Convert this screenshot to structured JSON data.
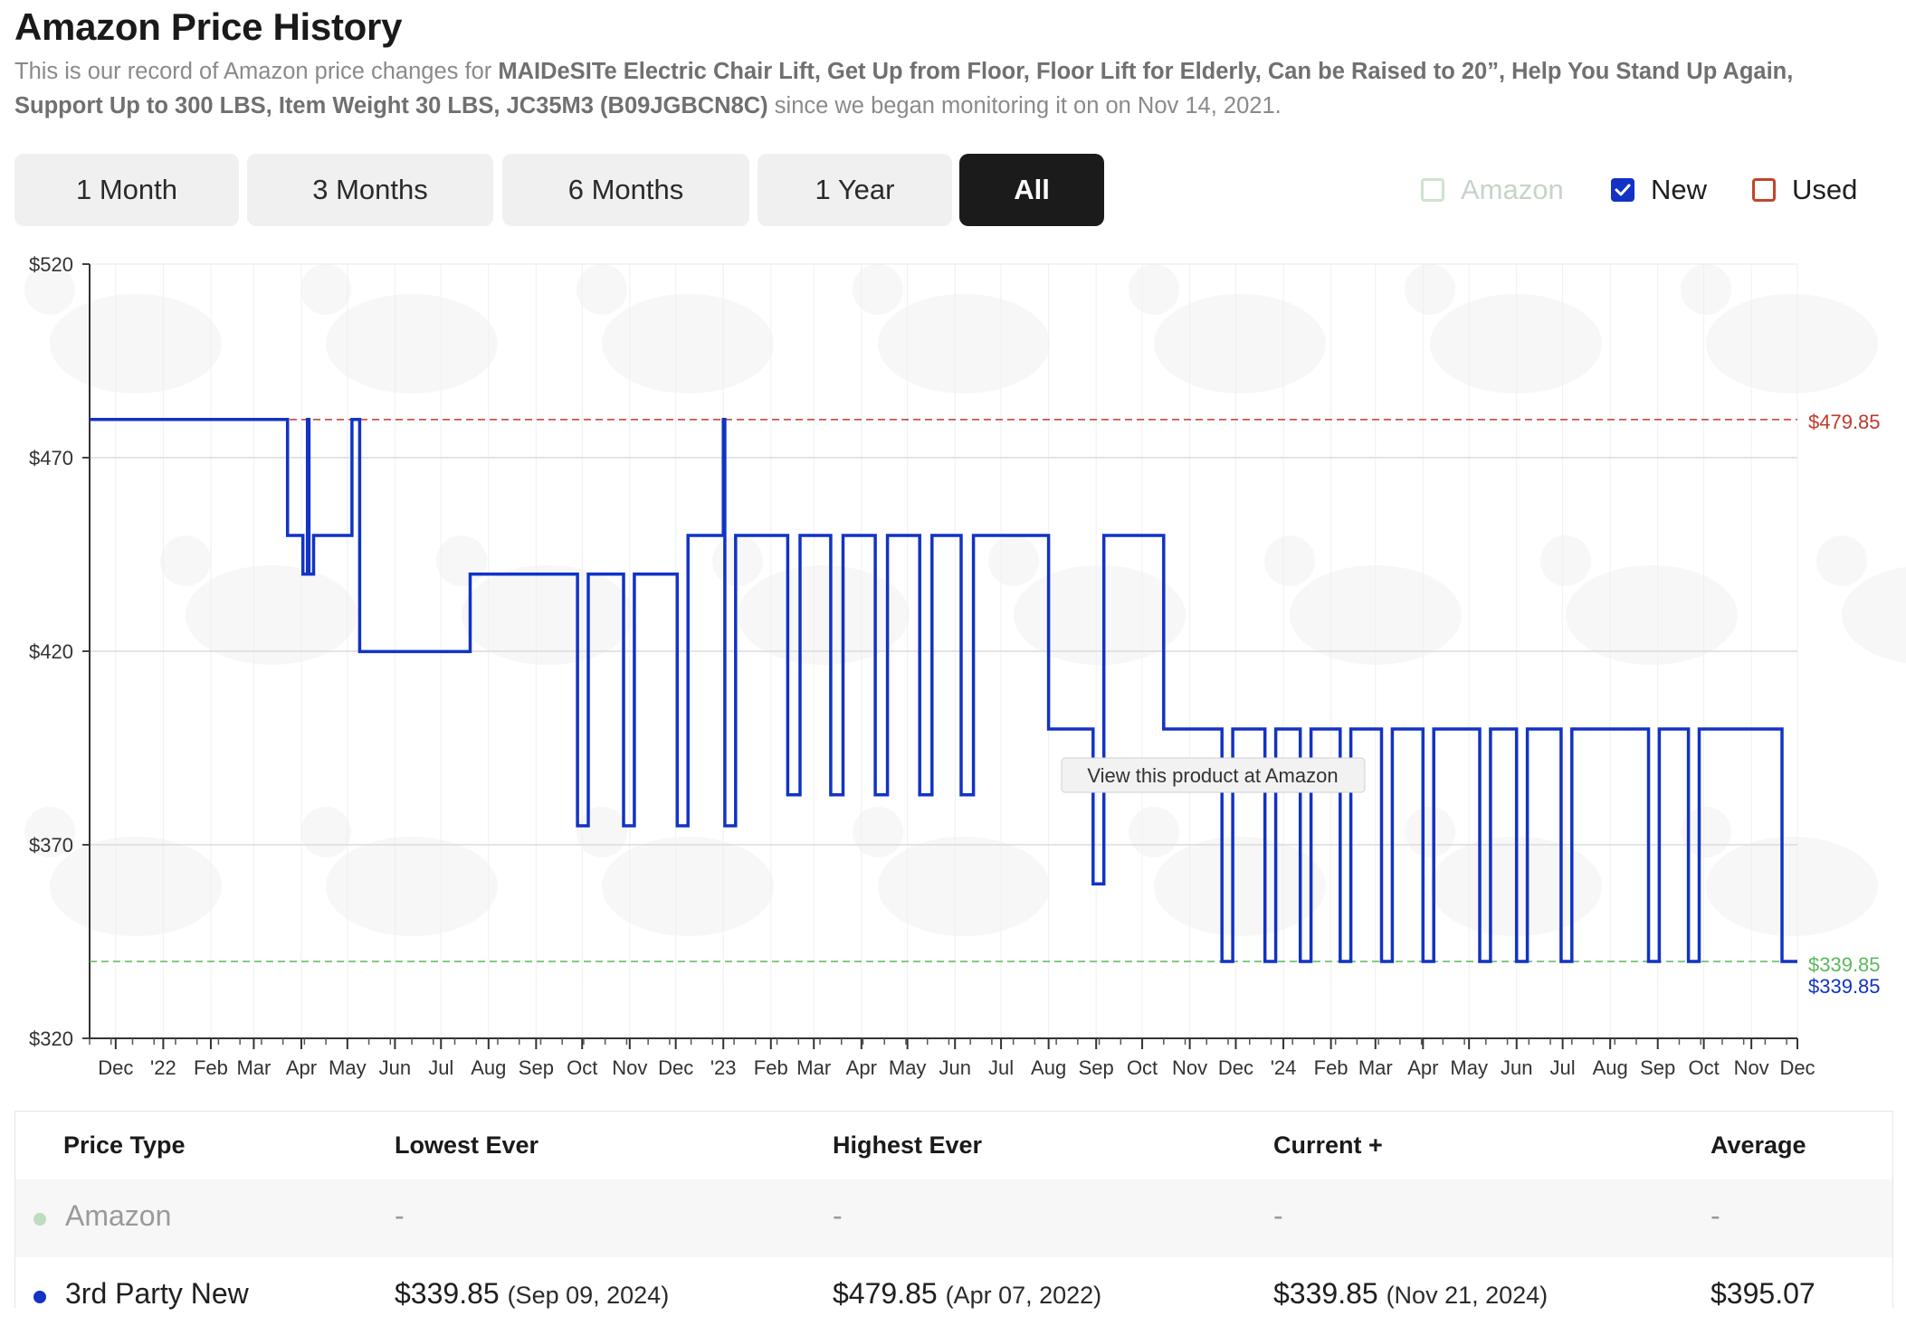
{
  "header": {
    "title": "Amazon Price History",
    "desc_prefix": "This is our record of Amazon price changes for ",
    "product": "MAIDeSITe Electric Chair Lift, Get Up from Floor, Floor Lift for Elderly, Can be Raised to 20”, Help You Stand Up Again, Support Up to 300 LBS, Item Weight 30 LBS, JC35M3 (B09JGBCN8C)",
    "desc_suffix": " since we began monitoring it on on Nov 14, 2021."
  },
  "range_tabs": [
    {
      "label": "1 Month",
      "active": false
    },
    {
      "label": "3 Months",
      "active": false
    },
    {
      "label": "6 Months",
      "active": false
    },
    {
      "label": "1 Year",
      "active": false
    },
    {
      "label": "All",
      "active": true
    }
  ],
  "legend": {
    "amazon": {
      "label": "Amazon",
      "checked": false,
      "color": "#cfe3cf"
    },
    "new": {
      "label": "New",
      "checked": true,
      "color": "#1233c4"
    },
    "used": {
      "label": "Used",
      "checked": false,
      "color": "#c2452c"
    }
  },
  "chart_data": {
    "type": "line",
    "step": true,
    "ylim": [
      320,
      520
    ],
    "yticks": [
      "$320",
      "$370",
      "$420",
      "$470",
      "$520"
    ],
    "yvalues": [
      320,
      370,
      420,
      470,
      520
    ],
    "xlabels": [
      "Dec",
      "'22",
      "Feb",
      "Mar",
      "Apr",
      "May",
      "Jun",
      "Jul",
      "Aug",
      "Sep",
      "Oct",
      "Nov",
      "Dec",
      "'23",
      "Feb",
      "Mar",
      "Apr",
      "May",
      "Jun",
      "Jul",
      "Aug",
      "Sep",
      "Oct",
      "Nov",
      "Dec",
      "'24",
      "Feb",
      "Mar",
      "Apr",
      "May",
      "Jun",
      "Jul",
      "Aug",
      "Sep",
      "Oct",
      "Nov",
      "Dec"
    ],
    "xlabel_dates": [
      "2021-12-01",
      "2022-01-01",
      "2022-02-01",
      "2022-03-01",
      "2022-04-01",
      "2022-05-01",
      "2022-06-01",
      "2022-07-01",
      "2022-08-01",
      "2022-09-01",
      "2022-10-01",
      "2022-11-01",
      "2022-12-01",
      "2023-01-01",
      "2023-02-01",
      "2023-03-01",
      "2023-04-01",
      "2023-05-01",
      "2023-06-01",
      "2023-07-01",
      "2023-08-01",
      "2023-09-01",
      "2023-10-01",
      "2023-11-01",
      "2023-12-01",
      "2024-01-01",
      "2024-02-01",
      "2024-03-01",
      "2024-04-01",
      "2024-05-01",
      "2024-06-01",
      "2024-07-01",
      "2024-08-01",
      "2024-09-01",
      "2024-10-01",
      "2024-11-01",
      "2024-12-01"
    ],
    "xrange": [
      "2021-11-14",
      "2024-12-01"
    ],
    "grid": true,
    "highest": {
      "value": 479.85,
      "label": "$479.85",
      "color": "#c0392b"
    },
    "lowest": {
      "value": 339.85,
      "label": "$339.85",
      "color": "#5cb85c"
    },
    "current": {
      "value": 339.85,
      "label": "$339.85",
      "color": "#1233c4"
    },
    "tooltip": "View this product at Amazon",
    "series": [
      {
        "name": "New",
        "color": "#1233c4",
        "points": [
          [
            "2021-11-14",
            479.85
          ],
          [
            "2022-03-23",
            449.9
          ],
          [
            "2022-04-02",
            439.9
          ],
          [
            "2022-04-05",
            479.85
          ],
          [
            "2022-04-06",
            439.9
          ],
          [
            "2022-04-09",
            449.9
          ],
          [
            "2022-05-04",
            479.85
          ],
          [
            "2022-05-09",
            419.9
          ],
          [
            "2022-07-20",
            439.9
          ],
          [
            "2022-09-28",
            374.9
          ],
          [
            "2022-10-05",
            439.9
          ],
          [
            "2022-10-28",
            374.9
          ],
          [
            "2022-11-04",
            439.9
          ],
          [
            "2022-12-02",
            374.9
          ],
          [
            "2022-12-09",
            449.9
          ],
          [
            "2023-01-01",
            479.85
          ],
          [
            "2023-01-02",
            374.9
          ],
          [
            "2023-01-09",
            449.9
          ],
          [
            "2023-02-12",
            382.9
          ],
          [
            "2023-02-20",
            449.9
          ],
          [
            "2023-03-12",
            382.9
          ],
          [
            "2023-03-20",
            449.9
          ],
          [
            "2023-04-10",
            382.9
          ],
          [
            "2023-04-18",
            449.9
          ],
          [
            "2023-05-09",
            382.9
          ],
          [
            "2023-05-17",
            449.9
          ],
          [
            "2023-06-05",
            382.9
          ],
          [
            "2023-06-13",
            449.9
          ],
          [
            "2023-08-01",
            399.9
          ],
          [
            "2023-08-30",
            359.9
          ],
          [
            "2023-09-06",
            449.9
          ],
          [
            "2023-10-15",
            399.9
          ],
          [
            "2023-11-22",
            339.85
          ],
          [
            "2023-11-29",
            399.9
          ],
          [
            "2023-12-20",
            339.85
          ],
          [
            "2023-12-27",
            399.9
          ],
          [
            "2024-01-12",
            339.85
          ],
          [
            "2024-01-19",
            399.9
          ],
          [
            "2024-02-07",
            339.85
          ],
          [
            "2024-02-14",
            399.9
          ],
          [
            "2024-03-05",
            339.85
          ],
          [
            "2024-03-12",
            399.9
          ],
          [
            "2024-04-01",
            339.85
          ],
          [
            "2024-04-08",
            399.9
          ],
          [
            "2024-05-08",
            339.85
          ],
          [
            "2024-05-15",
            399.9
          ],
          [
            "2024-06-01",
            339.85
          ],
          [
            "2024-06-08",
            399.9
          ],
          [
            "2024-06-30",
            339.85
          ],
          [
            "2024-07-07",
            399.9
          ],
          [
            "2024-08-26",
            339.85
          ],
          [
            "2024-09-02",
            399.9
          ],
          [
            "2024-09-21",
            339.85
          ],
          [
            "2024-09-28",
            399.9
          ],
          [
            "2024-11-21",
            339.85
          ],
          [
            "2024-12-01",
            339.85
          ]
        ]
      }
    ]
  },
  "table": {
    "headers": [
      "Price Type",
      "Lowest Ever",
      "Highest Ever",
      "Current +",
      "Average"
    ],
    "rows": [
      {
        "name": "Amazon",
        "dot_color": "#bfdcbf",
        "lowest": "-",
        "lowest_date": "",
        "highest": "-",
        "highest_date": "",
        "current": "-",
        "current_date": "",
        "average": "-"
      },
      {
        "name": "3rd Party New",
        "dot_color": "#1233c4",
        "lowest": "$339.85",
        "lowest_date": "(Sep 09, 2024)",
        "highest": "$479.85",
        "highest_date": "(Apr 07, 2022)",
        "current": "$339.85",
        "current_date": "(Nov 21, 2024)",
        "average": "$395.07"
      }
    ]
  }
}
